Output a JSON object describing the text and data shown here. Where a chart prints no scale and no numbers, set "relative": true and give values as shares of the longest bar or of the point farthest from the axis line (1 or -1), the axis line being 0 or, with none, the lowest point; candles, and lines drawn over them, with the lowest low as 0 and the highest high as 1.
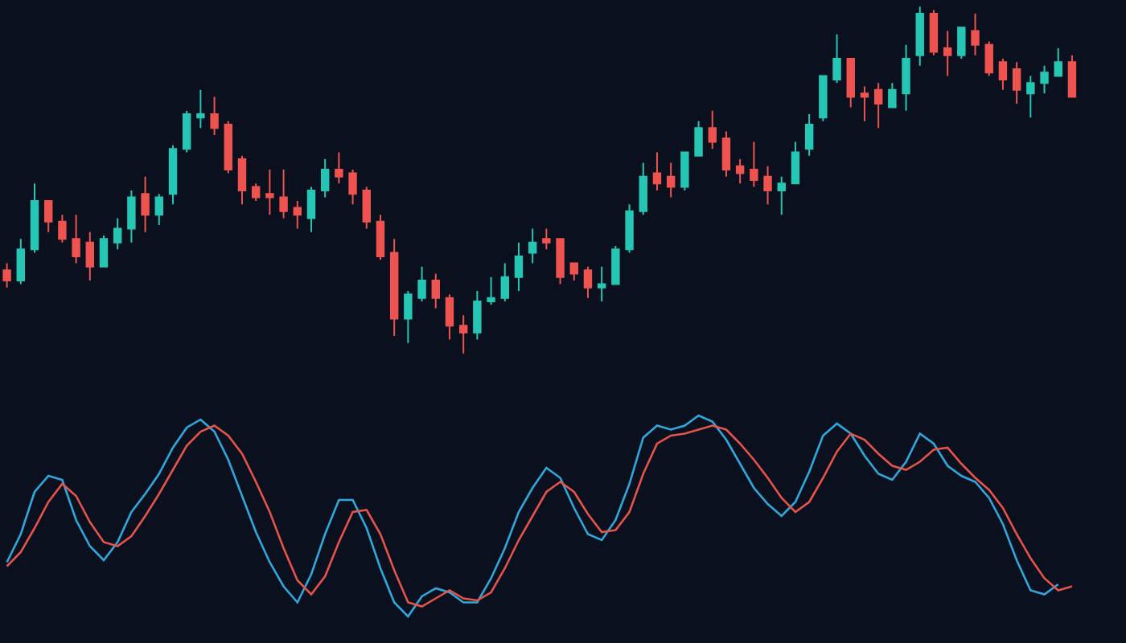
{
  "chart_data": [
    {
      "type": "candlestick",
      "relative": true,
      "categories": [
        null,
        null,
        null,
        null,
        null,
        null,
        null,
        null,
        null,
        null,
        null,
        null,
        null,
        null,
        null,
        null,
        null,
        null,
        null,
        null,
        null,
        null,
        null,
        null,
        null,
        null,
        null,
        null,
        null,
        null,
        null,
        null,
        null,
        null,
        null,
        null,
        null,
        null,
        null,
        null,
        null,
        null,
        null,
        null,
        null,
        null,
        null,
        null,
        null,
        null,
        null,
        null,
        null,
        null,
        null,
        null,
        null,
        null,
        null,
        null,
        null,
        null,
        null,
        null,
        null,
        null,
        null,
        null,
        null,
        null,
        null,
        null,
        null,
        null,
        null,
        null,
        null,
        null
      ],
      "ohlc": [
        [
          0.24,
          0.26,
          0.19,
          0.21
        ],
        [
          0.21,
          0.33,
          0.2,
          0.3
        ],
        [
          0.3,
          0.49,
          0.29,
          0.44
        ],
        [
          0.44,
          0.44,
          0.35,
          0.38
        ],
        [
          0.38,
          0.4,
          0.32,
          0.33
        ],
        [
          0.33,
          0.4,
          0.26,
          0.28
        ],
        [
          0.32,
          0.35,
          0.21,
          0.25
        ],
        [
          0.25,
          0.34,
          0.25,
          0.33
        ],
        [
          0.32,
          0.39,
          0.3,
          0.36
        ],
        [
          0.36,
          0.47,
          0.32,
          0.45
        ],
        [
          0.46,
          0.51,
          0.35,
          0.4
        ],
        [
          0.4,
          0.46,
          0.37,
          0.45
        ],
        [
          0.46,
          0.6,
          0.43,
          0.59
        ],
        [
          0.59,
          0.7,
          0.58,
          0.69
        ],
        [
          0.68,
          0.76,
          0.65,
          0.69
        ],
        [
          0.69,
          0.74,
          0.63,
          0.65
        ],
        [
          0.66,
          0.67,
          0.52,
          0.53
        ],
        [
          0.56,
          0.57,
          0.43,
          0.47
        ],
        [
          0.48,
          0.49,
          0.44,
          0.45
        ],
        [
          0.46,
          0.53,
          0.4,
          0.45
        ],
        [
          0.45,
          0.53,
          0.39,
          0.41
        ],
        [
          0.42,
          0.44,
          0.36,
          0.4
        ],
        [
          0.39,
          0.48,
          0.35,
          0.47
        ],
        [
          0.47,
          0.56,
          0.45,
          0.53
        ],
        [
          0.53,
          0.58,
          0.49,
          0.51
        ],
        [
          0.52,
          0.53,
          0.43,
          0.46
        ],
        [
          0.47,
          0.48,
          0.36,
          0.38
        ],
        [
          0.38,
          0.4,
          0.27,
          0.28
        ],
        [
          0.29,
          0.33,
          0.05,
          0.1
        ],
        [
          0.1,
          0.18,
          0.03,
          0.17
        ],
        [
          0.16,
          0.25,
          0.15,
          0.21
        ],
        [
          0.21,
          0.23,
          0.13,
          0.16
        ],
        [
          0.16,
          0.17,
          0.04,
          0.08
        ],
        [
          0.08,
          0.11,
          0,
          0.06
        ],
        [
          0.06,
          0.18,
          0.04,
          0.15
        ],
        [
          0.15,
          0.22,
          0.14,
          0.16
        ],
        [
          0.16,
          0.26,
          0.15,
          0.22
        ],
        [
          0.22,
          0.32,
          0.18,
          0.28
        ],
        [
          0.29,
          0.36,
          0.26,
          0.32
        ],
        [
          0.33,
          0.36,
          0.3,
          0.32
        ],
        [
          0.33,
          0.33,
          0.2,
          0.22
        ],
        [
          0.26,
          0.26,
          0.21,
          0.23
        ],
        [
          0.24,
          0.25,
          0.16,
          0.19
        ],
        [
          0.19,
          0.25,
          0.15,
          0.2
        ],
        [
          0.2,
          0.31,
          0.2,
          0.3
        ],
        [
          0.3,
          0.43,
          0.29,
          0.41
        ],
        [
          0.41,
          0.55,
          0.4,
          0.51
        ],
        [
          0.52,
          0.58,
          0.47,
          0.49
        ],
        [
          0.51,
          0.55,
          0.45,
          0.48
        ],
        [
          0.48,
          0.58,
          0.47,
          0.58
        ],
        [
          0.57,
          0.67,
          0.57,
          0.65
        ],
        [
          0.65,
          0.7,
          0.59,
          0.61
        ],
        [
          0.62,
          0.64,
          0.51,
          0.53
        ],
        [
          0.54,
          0.56,
          0.49,
          0.52
        ],
        [
          0.53,
          0.61,
          0.48,
          0.5
        ],
        [
          0.51,
          0.54,
          0.43,
          0.47
        ],
        [
          0.47,
          0.51,
          0.4,
          0.49
        ],
        [
          0.49,
          0.61,
          0.49,
          0.58
        ],
        [
          0.59,
          0.69,
          0.57,
          0.66
        ],
        [
          0.68,
          0.8,
          0.67,
          0.8
        ],
        [
          0.79,
          0.92,
          0.78,
          0.85
        ],
        [
          0.85,
          0.85,
          0.71,
          0.74
        ],
        [
          0.75,
          0.77,
          0.67,
          0.74
        ],
        [
          0.76,
          0.78,
          0.65,
          0.72
        ],
        [
          0.71,
          0.78,
          0.71,
          0.76
        ],
        [
          0.75,
          0.89,
          0.7,
          0.85
        ],
        [
          0.86,
          1,
          0.83,
          0.98
        ],
        [
          0.98,
          0.99,
          0.86,
          0.87
        ],
        [
          0.88,
          0.93,
          0.8,
          0.86
        ],
        [
          0.86,
          0.94,
          0.85,
          0.94
        ],
        [
          0.93,
          0.98,
          0.86,
          0.89
        ],
        [
          0.89,
          0.9,
          0.8,
          0.81
        ],
        [
          0.84,
          0.85,
          0.76,
          0.79
        ],
        [
          0.82,
          0.84,
          0.72,
          0.76
        ],
        [
          0.75,
          0.8,
          0.68,
          0.78
        ],
        [
          0.78,
          0.83,
          0.75,
          0.81
        ],
        [
          0.8,
          0.88,
          0.8,
          0.84
        ],
        [
          0.84,
          0.86,
          0.74,
          0.74
        ]
      ],
      "colors": [
        "#ef5350",
        "#26c6b4",
        "#26c6b4",
        "#ef5350",
        "#ef5350",
        "#ef5350",
        "#ef5350",
        "#26c6b4",
        "#26c6b4",
        "#26c6b4",
        "#ef5350",
        "#26c6b4",
        "#26c6b4",
        "#26c6b4",
        "#26c6b4",
        "#ef5350",
        "#ef5350",
        "#ef5350",
        "#ef5350",
        "#ef5350",
        "#ef5350",
        "#ef5350",
        "#26c6b4",
        "#26c6b4",
        "#ef5350",
        "#ef5350",
        "#ef5350",
        "#ef5350",
        "#ef5350",
        "#26c6b4",
        "#26c6b4",
        "#ef5350",
        "#ef5350",
        "#ef5350",
        "#26c6b4",
        "#26c6b4",
        "#26c6b4",
        "#26c6b4",
        "#26c6b4",
        "#ef5350",
        "#ef5350",
        "#ef5350",
        "#ef5350",
        "#26c6b4",
        "#26c6b4",
        "#26c6b4",
        "#26c6b4",
        "#ef5350",
        "#ef5350",
        "#26c6b4",
        "#26c6b4",
        "#ef5350",
        "#ef5350",
        "#ef5350",
        "#ef5350",
        "#ef5350",
        "#26c6b4",
        "#26c6b4",
        "#26c6b4",
        "#26c6b4",
        "#26c6b4",
        "#ef5350",
        "#ef5350",
        "#ef5350",
        "#26c6b4",
        "#26c6b4",
        "#26c6b4",
        "#ef5350",
        "#ef5350",
        "#26c6b4",
        "#ef5350",
        "#ef5350",
        "#ef5350",
        "#ef5350",
        "#26c6b4",
        "#26c6b4",
        "#26c6b4",
        "#ef5350"
      ]
    },
    {
      "type": "line",
      "relative": true,
      "categories": [
        null,
        null,
        null,
        null,
        null,
        null,
        null,
        null,
        null,
        null,
        null,
        null,
        null,
        null,
        null,
        null,
        null,
        null,
        null,
        null,
        null,
        null,
        null,
        null,
        null,
        null,
        null,
        null,
        null,
        null,
        null,
        null,
        null,
        null,
        null,
        null,
        null,
        null,
        null,
        null,
        null,
        null,
        null,
        null,
        null,
        null,
        null,
        null,
        null,
        null,
        null,
        null,
        null,
        null,
        null,
        null,
        null,
        null,
        null,
        null,
        null,
        null,
        null,
        null,
        null,
        null,
        null,
        null,
        null,
        null,
        null,
        null,
        null,
        null,
        null,
        null,
        null,
        null
      ],
      "series": [
        {
          "color": "#2fa8dc",
          "values": [
            0.27,
            0.41,
            0.62,
            0.7,
            0.68,
            0.48,
            0.35,
            0.28,
            0.37,
            0.52,
            0.61,
            0.71,
            0.84,
            0.94,
            0.98,
            0.92,
            0.78,
            0.6,
            0.42,
            0.27,
            0.15,
            0.07,
            0.21,
            0.41,
            0.58,
            0.58,
            0.44,
            0.24,
            0.07,
            0,
            0.1,
            0.14,
            0.12,
            0.07,
            0.07,
            0.19,
            0.34,
            0.52,
            0.64,
            0.74,
            0.69,
            0.54,
            0.41,
            0.38,
            0.48,
            0.66,
            0.89,
            0.95,
            0.93,
            0.95,
            1,
            0.97,
            0.88,
            0.76,
            0.64,
            0.56,
            0.5,
            0.57,
            0.72,
            0.9,
            0.96,
            0.91,
            0.8,
            0.71,
            0.68,
            0.77,
            0.91,
            0.86,
            0.75,
            0.7,
            0.67,
            0.59,
            0.46,
            0.28,
            0.13,
            0.11,
            0.16,
            null
          ]
        },
        {
          "color": "#e5534b",
          "values": [
            0.25,
            0.32,
            0.44,
            0.57,
            0.66,
            0.6,
            0.47,
            0.37,
            0.35,
            0.4,
            0.5,
            0.61,
            0.73,
            0.85,
            0.92,
            0.95,
            0.9,
            0.81,
            0.67,
            0.52,
            0.34,
            0.18,
            0.11,
            0.2,
            0.37,
            0.52,
            0.53,
            0.41,
            0.23,
            0.07,
            0.05,
            0.09,
            0.13,
            0.09,
            0.08,
            0.12,
            0.24,
            0.38,
            0.5,
            0.62,
            0.67,
            0.62,
            0.51,
            0.42,
            0.43,
            0.52,
            0.71,
            0.86,
            0.9,
            0.91,
            0.93,
            0.95,
            0.93,
            0.86,
            0.78,
            0.69,
            0.59,
            0.52,
            0.57,
            0.69,
            0.82,
            0.91,
            0.88,
            0.81,
            0.75,
            0.73,
            0.77,
            0.83,
            0.84,
            0.76,
            0.69,
            0.63,
            0.54,
            0.41,
            0.29,
            0.19,
            0.13,
            0.15
          ]
        }
      ]
    }
  ]
}
